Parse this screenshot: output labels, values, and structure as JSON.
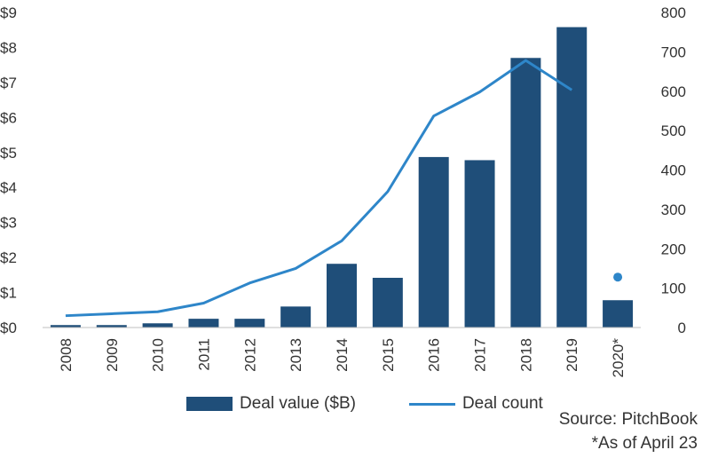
{
  "chart_data": {
    "type": "bar",
    "categories": [
      "2008",
      "2009",
      "2010",
      "2011",
      "2012",
      "2013",
      "2014",
      "2015",
      "2016",
      "2017",
      "2018",
      "2019",
      "2020*"
    ],
    "series": [
      {
        "name": "Deal value ($B)",
        "type": "bar",
        "axis": "left",
        "values": [
          0.07,
          0.07,
          0.12,
          0.25,
          0.25,
          0.6,
          1.82,
          1.42,
          4.87,
          4.78,
          7.7,
          8.58,
          0.78
        ]
      },
      {
        "name": "Deal count",
        "type": "line",
        "axis": "right",
        "values": [
          30,
          35,
          40,
          62,
          113,
          150,
          220,
          345,
          537,
          598,
          678,
          603,
          null
        ],
        "extra_point": {
          "category": "2020*",
          "value": 128
        }
      }
    ],
    "y_left": {
      "ylim": [
        0,
        9
      ],
      "ticks": [
        "$0",
        "$1",
        "$2",
        "$3",
        "$4",
        "$5",
        "$6",
        "$7",
        "$8",
        "$9"
      ]
    },
    "y_right": {
      "ylim": [
        0,
        800
      ],
      "ticks": [
        "0",
        "100",
        "200",
        "300",
        "400",
        "500",
        "600",
        "700",
        "800"
      ]
    },
    "colors": {
      "bar": "#1F4E79",
      "line": "#2E86C9",
      "axis": "#BFBFBF"
    }
  },
  "legend": {
    "bar_label": "Deal value ($B)",
    "line_label": "Deal count"
  },
  "notes": {
    "source": "Source: PitchBook",
    "asof": "*As of April 23"
  }
}
